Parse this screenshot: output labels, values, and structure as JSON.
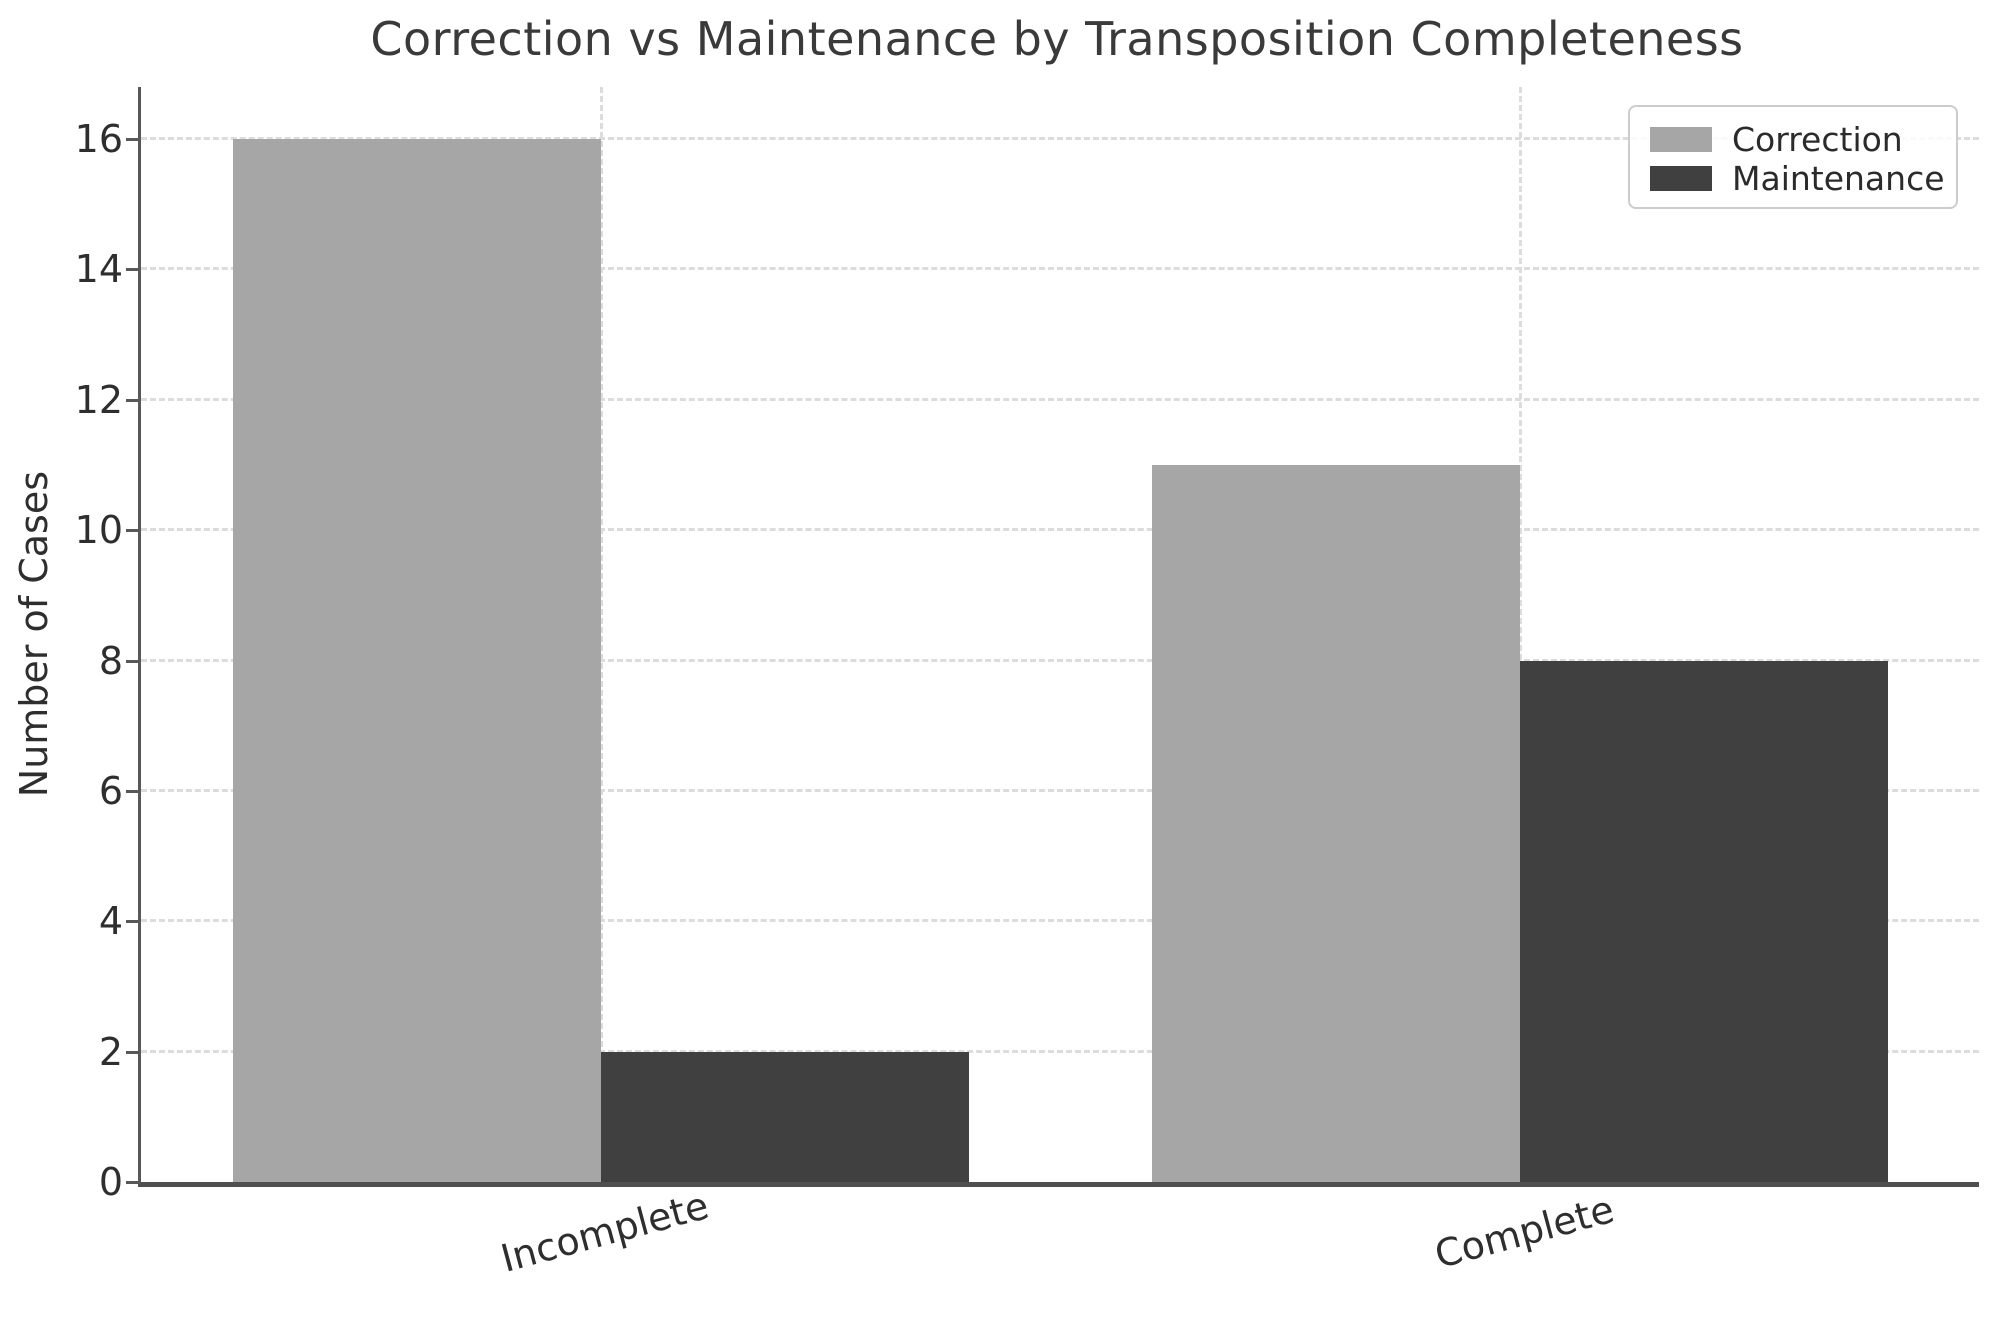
{
  "chart_data": {
    "type": "bar",
    "title": "Correction vs Maintenance by Transposition Completeness",
    "categories": [
      "Incomplete",
      "Complete"
    ],
    "series": [
      {
        "name": "Correction",
        "color": "#a6a6a6",
        "values": [
          16,
          11
        ]
      },
      {
        "name": "Maintenance",
        "color": "#404040",
        "values": [
          2,
          8
        ]
      }
    ],
    "xlabel": "",
    "ylabel": "Number of Cases",
    "ylim": [
      0,
      16.8
    ],
    "yticks": [
      0,
      2,
      4,
      6,
      8,
      10,
      12,
      14,
      16
    ],
    "grid": {
      "on": true,
      "style": "dashed",
      "color": "#dcdcdc",
      "axes": "both"
    },
    "legend": {
      "position": "upper right",
      "entries": [
        "Correction",
        "Maintenance"
      ]
    },
    "xtick_rotation_deg": 15,
    "bar_width_fraction": 0.4,
    "accent_colors": {
      "axis_spine": "#58585a",
      "text": "#2e2e2e",
      "title": "#3a3a3a"
    }
  }
}
